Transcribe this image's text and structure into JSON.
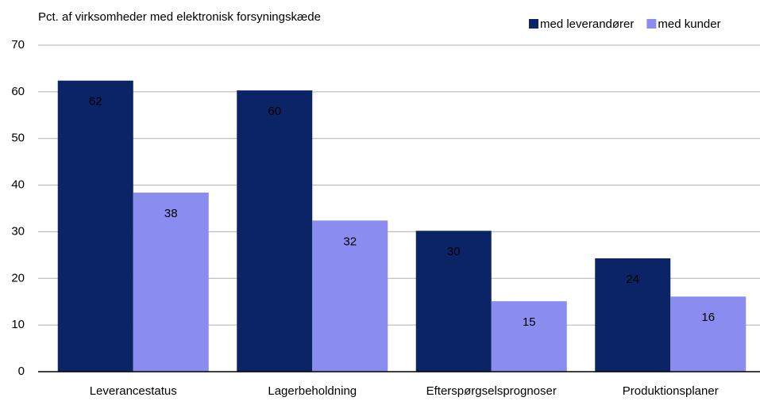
{
  "chart_data": {
    "type": "bar",
    "y_axis_label": "Pct. af virksomheder med elektronisk forsyningskæde",
    "categories": [
      "Leverancestatus",
      "Lagerbeholdning",
      "Efterspørgselsprognoser",
      "Produktionsplaner"
    ],
    "series": [
      {
        "name": "med leverandører",
        "color": "#0b2466",
        "values": [
          62.4,
          60.3,
          30.2,
          24.3
        ],
        "value_labels": [
          "62",
          "60",
          "30",
          "24"
        ]
      },
      {
        "name": "med kunder",
        "color": "#8a8cf0",
        "values": [
          38.4,
          32.4,
          15.1,
          16.1
        ],
        "value_labels": [
          "38",
          "32",
          "15",
          "16"
        ]
      }
    ],
    "ylim": [
      0,
      70
    ],
    "yticks": [
      0,
      10,
      20,
      30,
      40,
      50,
      60,
      70
    ],
    "grid": true,
    "legend": "top-right"
  }
}
